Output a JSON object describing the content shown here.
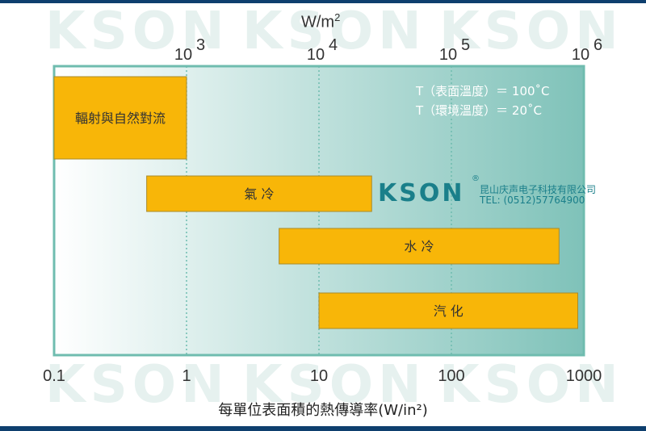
{
  "colors": {
    "frame": "#0e3f6e",
    "plot_gradient_start": "#ffffff",
    "plot_gradient_end": "#7fc2b9",
    "bar_fill": "#f8b608",
    "bar_stroke": "#a98b2a",
    "grid": "#6fbcaf",
    "logo": "#1a7f8a"
  },
  "watermark": "KSON",
  "logo": {
    "name": "KSON",
    "registered": "®",
    "company": "昆山庆声电子科技有限公司",
    "tel": "TEL: (0512)57764900"
  },
  "chart_data": {
    "type": "bar",
    "orientation": "horizontal-range",
    "xscale": "log",
    "xlabel": "每單位表面積的熱傳導率(W/in²)",
    "xlim": [
      0.1,
      1000
    ],
    "x_ticks": [
      "0.1",
      "1",
      "10",
      "100",
      "1000"
    ],
    "x_tick_values": [
      0.1,
      1,
      10,
      100,
      1000
    ],
    "top_axis": {
      "unit_base": "W/m",
      "unit_exp": "2",
      "ticks": [
        {
          "base": "10",
          "exp": "3",
          "at_bottom_value": 1
        },
        {
          "base": "10",
          "exp": "4",
          "at_bottom_value": 10
        },
        {
          "base": "10",
          "exp": "5",
          "at_bottom_value": 100
        },
        {
          "base": "10",
          "exp": "6",
          "at_bottom_value": 1000
        }
      ]
    },
    "grid": {
      "vertical_dotted_at": [
        1,
        10,
        100
      ]
    },
    "bars": [
      {
        "label": "輻射與自然對流",
        "start": 0.1,
        "end": 1
      },
      {
        "label": "氣 冷",
        "start": 0.5,
        "end": 25
      },
      {
        "label": "水 冷",
        "start": 5,
        "end": 650
      },
      {
        "label": "汽 化",
        "start": 10,
        "end": 900
      }
    ],
    "annotations": [
      "T（表面溫度）＝ 100˚C",
      "T（環境溫度）＝ 20˚C"
    ]
  }
}
